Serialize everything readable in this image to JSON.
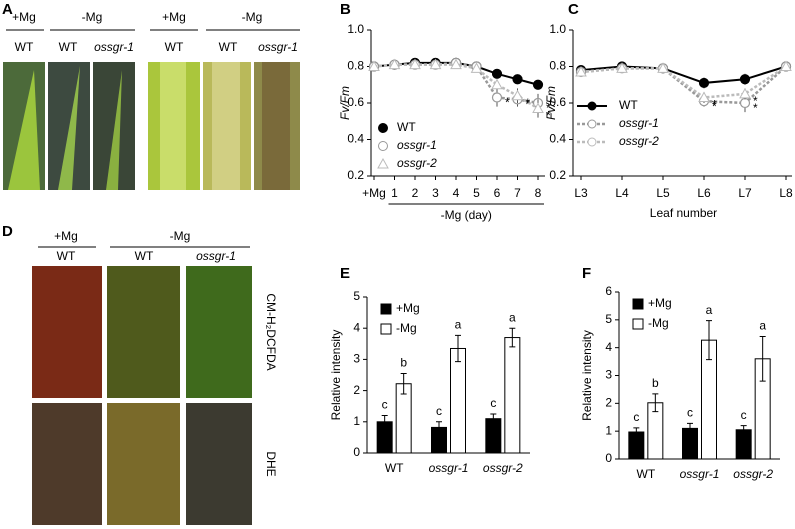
{
  "figure": {
    "panel_labels": [
      "A",
      "B",
      "C",
      "D",
      "E",
      "F"
    ],
    "panel_a": {
      "groups": [
        "+Mg",
        "-Mg",
        "+Mg",
        "-Mg"
      ],
      "columns": [
        "WT",
        "WT",
        "ossgr-1",
        "WT",
        "WT",
        "ossgr-1"
      ]
    },
    "panel_d": {
      "groups": [
        "+Mg",
        "-Mg"
      ],
      "columns": [
        "WT",
        "WT",
        "ossgr-1"
      ],
      "rows": [
        "CM-H₂DCFDA",
        "DHE"
      ]
    }
  },
  "chart_data": [
    {
      "type": "line",
      "y_label": "Fv/Fm",
      "x_label": "-Mg (day)",
      "categories": [
        "+Mg",
        "1",
        "2",
        "3",
        "4",
        "5",
        "6",
        "7",
        "8"
      ],
      "ylim": [
        0.2,
        1.0
      ],
      "yticks": [
        0.2,
        0.4,
        0.6,
        0.8,
        {
          "value": 1.0,
          "label": "1.0"
        }
      ],
      "legend": "lower left",
      "series": [
        {
          "name": "WT",
          "color": "#000000",
          "marker": "circle",
          "marker_fill": "#000000",
          "dashed": false,
          "italic": false,
          "values": [
            0.8,
            0.81,
            0.82,
            0.82,
            0.82,
            0.8,
            0.76,
            0.73,
            0.7
          ],
          "errors": [
            0.01,
            0.01,
            0.01,
            0.01,
            0.01,
            0.01,
            0.02,
            0.02,
            0.02
          ],
          "labels": [
            null,
            null,
            null,
            null,
            null,
            null,
            null,
            null,
            null
          ]
        },
        {
          "name": "ossgr-1",
          "color": "#999999",
          "marker": "circle",
          "marker_fill": "#ffffff",
          "dashed": true,
          "italic": true,
          "values": [
            0.8,
            0.81,
            0.81,
            0.81,
            0.82,
            0.8,
            0.63,
            0.62,
            0.6
          ],
          "errors": [
            0.01,
            0.01,
            0.01,
            0.01,
            0.01,
            0.01,
            0.05,
            0.04,
            0.05
          ],
          "labels": [
            null,
            null,
            null,
            null,
            null,
            null,
            "*",
            "*",
            "*"
          ]
        },
        {
          "name": "ossgr-2",
          "color": "#bbbbbb",
          "marker": "triangle",
          "marker_fill": "#ffffff",
          "dashed": true,
          "italic": true,
          "values": [
            0.8,
            0.81,
            0.81,
            0.81,
            0.81,
            0.79,
            0.7,
            0.64,
            0.57
          ],
          "errors": [
            0.01,
            0.01,
            0.01,
            0.01,
            0.01,
            0.01,
            0.03,
            0.04,
            0.05
          ],
          "labels": [
            null,
            null,
            null,
            null,
            null,
            null,
            null,
            "*",
            "*"
          ]
        }
      ]
    },
    {
      "type": "line",
      "y_label": "Fv/Fm",
      "x_label": "Leaf number",
      "categories": [
        "L3",
        "L4",
        "L5",
        "L6",
        "L7",
        "L8"
      ],
      "ylim": [
        0.2,
        1.0
      ],
      "yticks": [
        0.2,
        0.4,
        0.6,
        0.8,
        {
          "value": 1.0,
          "label": "1.0"
        }
      ],
      "legend": "center left",
      "series": [
        {
          "name": "WT",
          "color": "#000000",
          "marker": "circle",
          "marker_fill": "#000000",
          "dashed": false,
          "italic": false,
          "values": [
            0.78,
            0.8,
            0.79,
            0.71,
            0.73,
            0.8
          ],
          "errors": [
            0.01,
            0.01,
            0.01,
            0.03,
            0.03,
            0.01
          ],
          "labels": [
            null,
            null,
            null,
            null,
            null,
            null
          ]
        },
        {
          "name": "ossgr-1",
          "color": "#999999",
          "marker": "circle",
          "marker_fill": "#ffffff",
          "dashed": true,
          "italic": true,
          "values": [
            0.77,
            0.79,
            0.79,
            0.61,
            0.6,
            0.8
          ],
          "errors": [
            0.01,
            0.01,
            0.01,
            0.03,
            0.05,
            0.01
          ],
          "labels": [
            null,
            null,
            null,
            "*",
            "*",
            null
          ]
        },
        {
          "name": "ossgr-2",
          "color": "#bbbbbb",
          "marker": "triangle",
          "marker_fill": "#ffffff",
          "dashed": true,
          "italic": true,
          "values": [
            0.77,
            0.79,
            0.79,
            0.63,
            0.65,
            0.8
          ],
          "errors": [
            0.01,
            0.01,
            0.01,
            0.03,
            0.03,
            0.01
          ],
          "labels": [
            null,
            null,
            null,
            "*",
            "*",
            null
          ]
        }
      ]
    },
    {
      "type": "bar",
      "y_label": "Relative intensity",
      "categories": [
        "WT",
        "ossgr-1",
        "ossgr-2"
      ],
      "italic_categories": [
        false,
        true,
        true
      ],
      "ylim": [
        0,
        5
      ],
      "yticks": [
        0,
        1,
        2,
        3,
        4,
        5
      ],
      "legend": "upper left",
      "series": [
        {
          "name": "+Mg",
          "color": "#000000",
          "values": [
            1.0,
            0.82,
            1.1
          ],
          "errors": [
            0.2,
            0.18,
            0.15
          ],
          "letters": [
            "c",
            "c",
            "c"
          ]
        },
        {
          "name": "-Mg",
          "color": "#ffffff",
          "values": [
            2.22,
            3.35,
            3.7
          ],
          "errors": [
            0.33,
            0.42,
            0.3
          ],
          "letters": [
            "b",
            "a",
            "a"
          ]
        }
      ]
    },
    {
      "type": "bar",
      "y_label": "Relative intensity",
      "categories": [
        "WT",
        "ossgr-1",
        "ossgr-2"
      ],
      "italic_categories": [
        false,
        true,
        true
      ],
      "ylim": [
        0,
        6
      ],
      "yticks": [
        0,
        1,
        2,
        3,
        4,
        5,
        6
      ],
      "legend": "upper left",
      "series": [
        {
          "name": "+Mg",
          "color": "#000000",
          "values": [
            0.97,
            1.1,
            1.05
          ],
          "errors": [
            0.15,
            0.18,
            0.15
          ],
          "letters": [
            "c",
            "c",
            "c"
          ]
        },
        {
          "name": "-Mg",
          "color": "#ffffff",
          "values": [
            2.02,
            4.27,
            3.6
          ],
          "errors": [
            0.32,
            0.7,
            0.8
          ],
          "letters": [
            "b",
            "a",
            "a"
          ]
        }
      ]
    }
  ]
}
